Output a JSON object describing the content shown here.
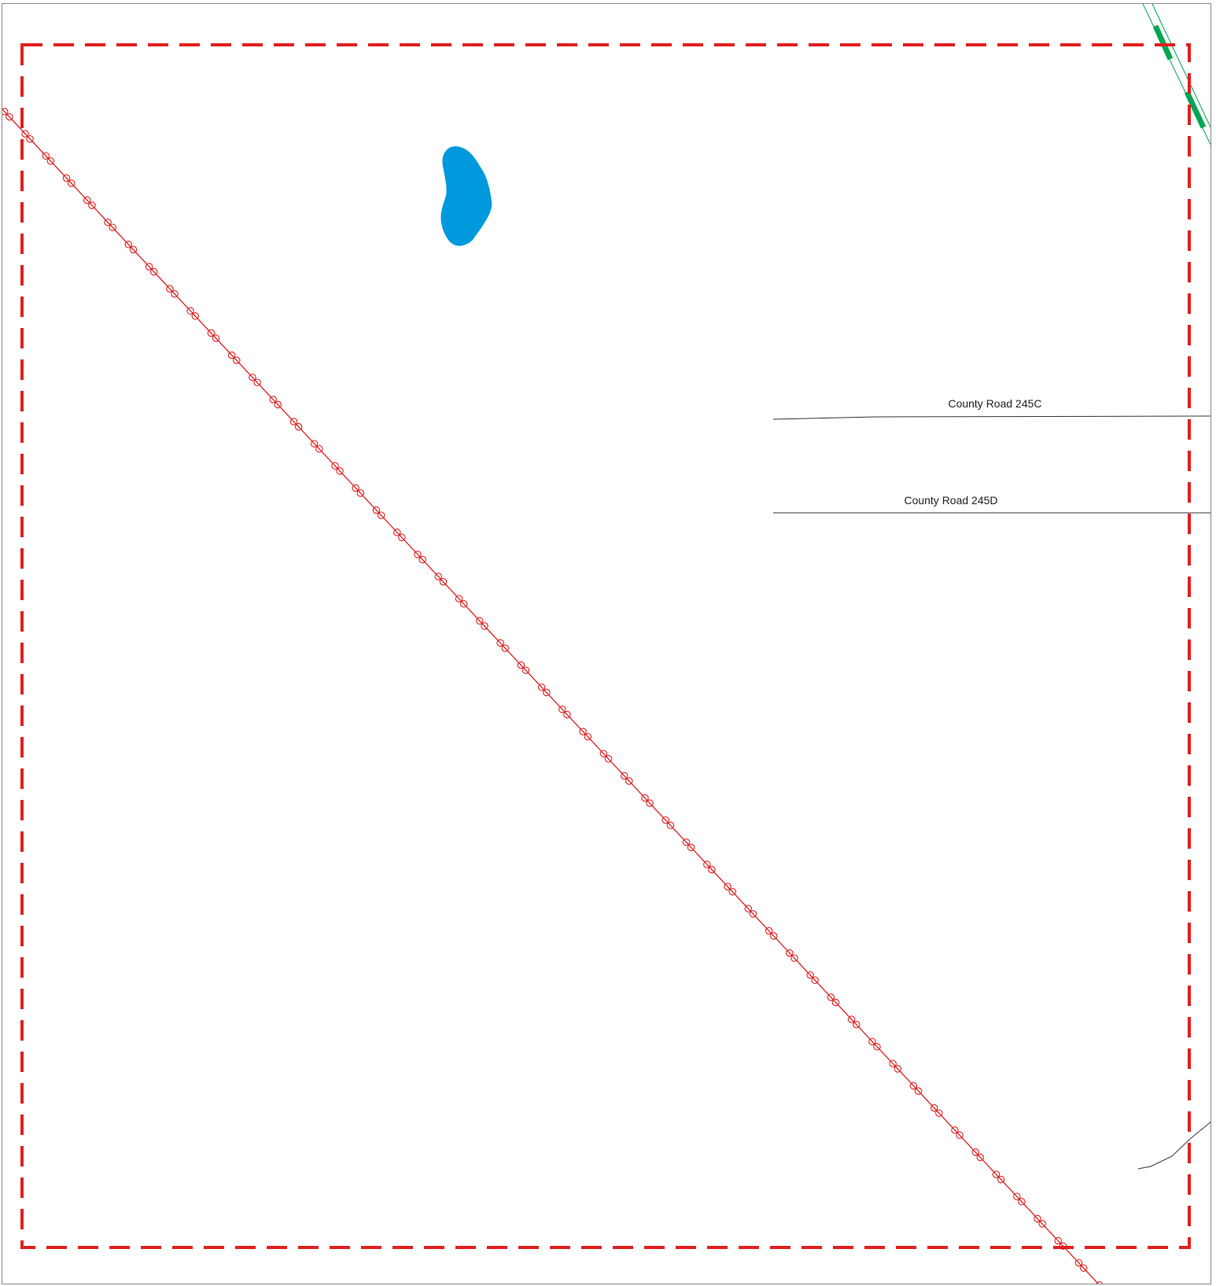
{
  "map": {
    "roads": [
      {
        "name": "County Road 245C"
      },
      {
        "name": "County Road 245D"
      }
    ],
    "colors": {
      "boundary": "#e02020",
      "transmission_line": "#e02020",
      "water": "#0099dd",
      "trail": "#00a651",
      "road": "#333333",
      "frame": "#8a8a8a"
    },
    "features": {
      "boundary": "dashed-boundary",
      "transmission_line": "pipeline-with-markers",
      "water_body": "pond",
      "trail": "green-trail"
    }
  }
}
